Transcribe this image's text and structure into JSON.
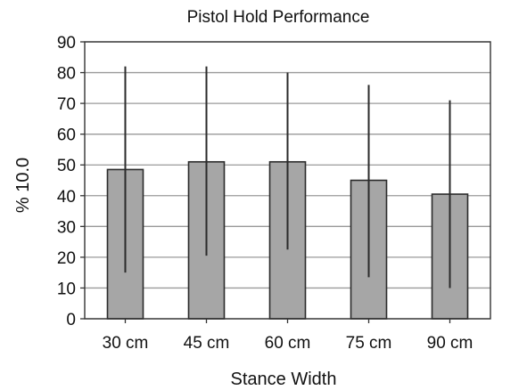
{
  "chart_data": {
    "type": "bar",
    "title": "Pistol Hold Performance",
    "xlabel": "Stance Width",
    "ylabel": "% 10.0",
    "categories": [
      "30 cm",
      "45 cm",
      "60 cm",
      "75 cm",
      "90 cm"
    ],
    "values": [
      48.5,
      51,
      51,
      45,
      40.5
    ],
    "error_low": [
      15,
      20.5,
      22.5,
      13.5,
      10
    ],
    "error_high": [
      82,
      82,
      80,
      76,
      71
    ],
    "ylim": [
      0,
      90
    ],
    "yticks": [
      0,
      10,
      20,
      30,
      40,
      50,
      60,
      70,
      80,
      90
    ],
    "grid": true,
    "legend": "none",
    "colors": {
      "bar_fill": "#a6a6a6",
      "bar_stroke": "#2b2b2b",
      "grid": "#9a9a9a",
      "error_bar": "#2b2b2b",
      "axis": "#333333"
    }
  }
}
